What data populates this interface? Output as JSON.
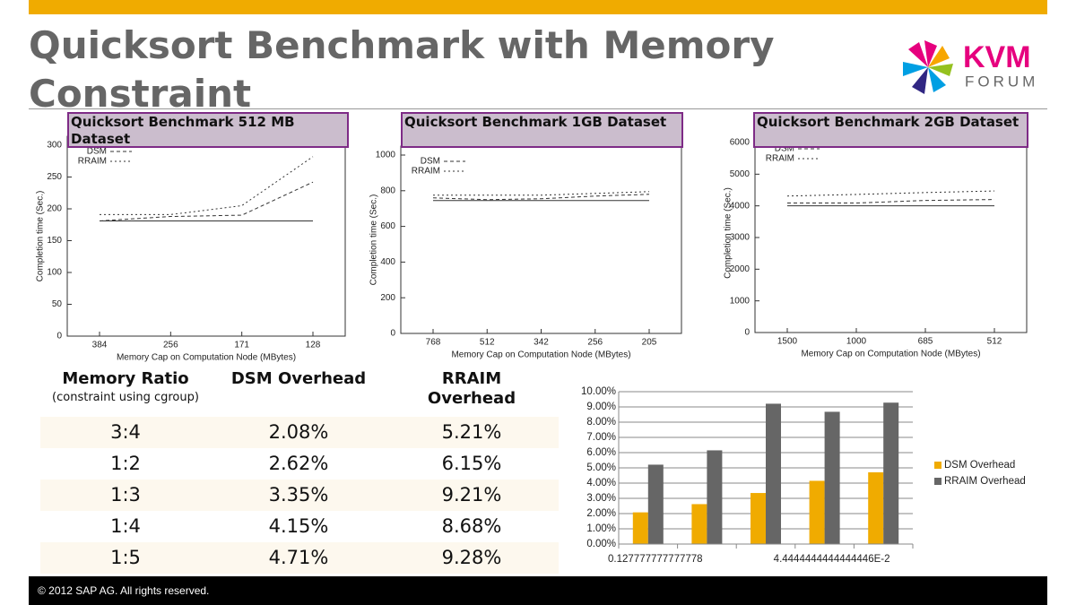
{
  "header": {
    "title": "Quicksort Benchmark with Memory Constraint"
  },
  "logo": {
    "text1": "KVM",
    "text2": "FORUM"
  },
  "chart_data": [
    {
      "type": "line",
      "title": "Quicksort Benchmark 512 MB Dataset",
      "x_label": "Memory Cap on Computation Node (MBytes)",
      "y_label": "Completion time (Sec.)",
      "categories": [
        "384",
        "256",
        "171",
        "128"
      ],
      "ylim": [
        0,
        300
      ],
      "yticks": [
        0,
        50,
        100,
        150,
        200,
        250,
        300
      ],
      "series": [
        {
          "values": [
            181,
            181,
            181,
            181
          ]
        },
        {
          "name": "DSM",
          "values": [
            181,
            188,
            190,
            242
          ]
        },
        {
          "name": "RRAIM",
          "values": [
            191,
            191,
            205,
            282
          ]
        }
      ]
    },
    {
      "type": "line",
      "title": "Quicksort Benchmark 1GB Dataset",
      "x_label": "Memory Cap on Computation Node (MBytes)",
      "y_label": "Completion time (Sec.)",
      "categories": [
        "768",
        "512",
        "342",
        "256",
        "205"
      ],
      "ylim": [
        0,
        1000
      ],
      "yticks": [
        0,
        200,
        400,
        600,
        800,
        1000
      ],
      "series": [
        {
          "values": [
            745,
            745,
            745,
            745,
            745
          ]
        },
        {
          "name": "DSM",
          "values": [
            760,
            750,
            755,
            770,
            780
          ]
        },
        {
          "name": "RRAIM",
          "values": [
            775,
            775,
            775,
            785,
            795
          ]
        }
      ]
    },
    {
      "type": "line",
      "title": "Quicksort Benchmark 2GB Dataset",
      "x_label": "Memory Cap on Computation Node (MBytes)",
      "y_label": "Completion time (Sec.)",
      "categories": [
        "1500",
        "1000",
        "685",
        "512"
      ],
      "ylim": [
        0,
        6000
      ],
      "yticks": [
        0,
        1000,
        2000,
        3000,
        4000,
        5000,
        6000
      ],
      "series": [
        {
          "values": [
            4000,
            4000,
            4000,
            4000
          ]
        },
        {
          "name": "DSM",
          "values": [
            4090,
            4090,
            4170,
            4200
          ]
        },
        {
          "name": "RRAIM",
          "values": [
            4310,
            4360,
            4420,
            4470
          ]
        }
      ]
    },
    {
      "type": "bar",
      "categories": [
        "0.127777777777778",
        null,
        null,
        "4.4444444444444446E-2",
        null
      ],
      "ylim": [
        0,
        10
      ],
      "yticks": [
        {
          "value": 0,
          "label": "0.00%"
        },
        {
          "value": 1,
          "label": "1.00%"
        },
        {
          "value": 2,
          "label": "2.00%"
        },
        {
          "value": 3,
          "label": "3.00%"
        },
        {
          "value": 4,
          "label": "4.00%"
        },
        {
          "value": 5,
          "label": "5.00%"
        },
        {
          "value": 6,
          "label": "6.00%"
        },
        {
          "value": 7,
          "label": "7.00%"
        },
        {
          "value": 8,
          "label": "8.00%"
        },
        {
          "value": 9,
          "label": "9.00%"
        },
        {
          "value": 10,
          "label": "10.00%"
        }
      ],
      "grid": true,
      "series": [
        {
          "name": "DSM Overhead",
          "color": "#f0ab00",
          "values": [
            2.08,
            2.62,
            3.35,
            4.15,
            4.71
          ]
        },
        {
          "name": "RRAIM Overhead",
          "color": "#666666",
          "values": [
            5.21,
            6.15,
            9.21,
            8.68,
            9.28
          ]
        }
      ]
    }
  ],
  "table": {
    "header": [
      "Memory Ratio",
      "DSM Overhead",
      "RRAIM Overhead"
    ],
    "header_note": "(constraint using cgroup)",
    "rows": [
      [
        "3:4",
        "2.08%",
        "5.21%"
      ],
      [
        "1:2",
        "2.62%",
        "6.15%"
      ],
      [
        "1:3",
        "3.35%",
        "9.21%"
      ],
      [
        "1:4",
        "4.15%",
        "8.68%"
      ],
      [
        "1:5",
        "4.71%",
        "9.28%"
      ]
    ]
  },
  "footer": {
    "text": "© 2012 SAP AG. All rights reserved."
  }
}
